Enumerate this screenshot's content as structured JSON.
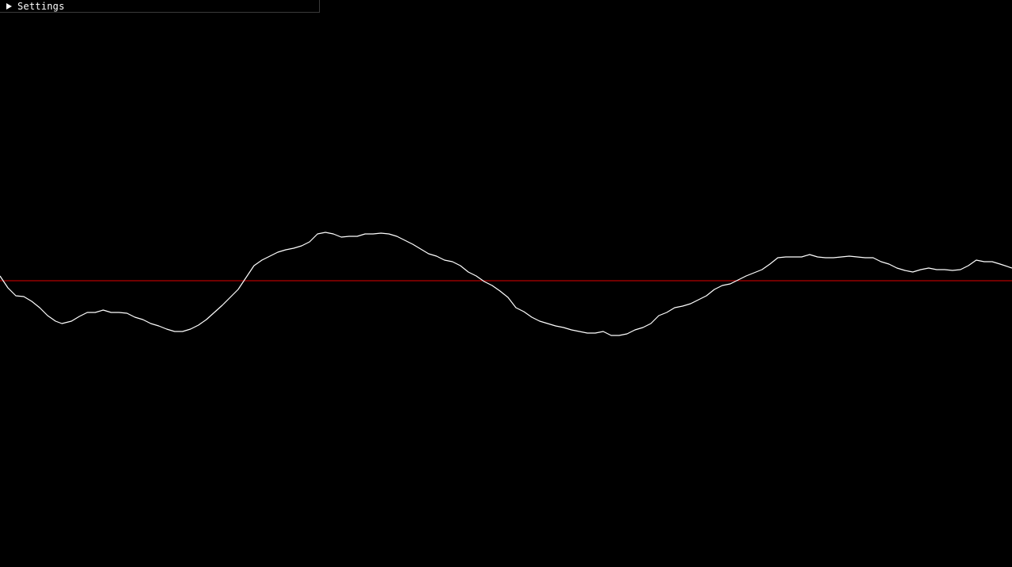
{
  "settings_panel": {
    "label": "Settings",
    "collapsed": true,
    "toggle_icon": "triangle-right-icon"
  },
  "colors": {
    "background": "#000000",
    "signal": "#ffffff",
    "baseline": "#e00000",
    "panel_border": "#3a3a3a"
  },
  "chart_data": {
    "type": "line",
    "xlim": [
      0,
      1275
    ],
    "ylim": [
      -1,
      1
    ],
    "grid": false,
    "baseline": 0,
    "series": [
      {
        "x": [
          0,
          10,
          20,
          30,
          40,
          50,
          60,
          70,
          78,
          90,
          100,
          110,
          120,
          130,
          140,
          150,
          160,
          170,
          180,
          190,
          200,
          210,
          220,
          230,
          240,
          250,
          260,
          270,
          280,
          290,
          300,
          310,
          320,
          330,
          340,
          350,
          360,
          370,
          380,
          390,
          400,
          410,
          420,
          430,
          440,
          450,
          460,
          470,
          480,
          490,
          500,
          510,
          520,
          530,
          540,
          550,
          560,
          570,
          580,
          590,
          600,
          610,
          620,
          630,
          640,
          650,
          660,
          670,
          680,
          690,
          700,
          710,
          720,
          730,
          740,
          750,
          760,
          770,
          780,
          790,
          800,
          810,
          820,
          830,
          840,
          850,
          860,
          870,
          880,
          890,
          900,
          910,
          920,
          930,
          940,
          950,
          960,
          970,
          980,
          990,
          1000,
          1010,
          1020,
          1030,
          1040,
          1050,
          1060,
          1070,
          1080,
          1090,
          1100,
          1110,
          1120,
          1130,
          1140,
          1150,
          1160,
          1170,
          1180,
          1190,
          1200,
          1210,
          1220,
          1230,
          1240,
          1250,
          1260,
          1275
        ],
        "y": [
          0.06,
          -0.09,
          -0.19,
          -0.2,
          -0.26,
          -0.34,
          -0.44,
          -0.51,
          -0.54,
          -0.51,
          -0.45,
          -0.4,
          -0.4,
          -0.37,
          -0.4,
          -0.4,
          -0.41,
          -0.46,
          -0.49,
          -0.54,
          -0.57,
          -0.61,
          -0.64,
          -0.64,
          -0.61,
          -0.56,
          -0.49,
          -0.4,
          -0.31,
          -0.21,
          -0.11,
          0.04,
          0.19,
          0.26,
          0.31,
          0.36,
          0.39,
          0.41,
          0.44,
          0.49,
          0.59,
          0.61,
          0.59,
          0.55,
          0.56,
          0.56,
          0.59,
          0.59,
          0.6,
          0.59,
          0.56,
          0.51,
          0.46,
          0.4,
          0.34,
          0.31,
          0.26,
          0.24,
          0.19,
          0.11,
          0.06,
          -0.01,
          -0.06,
          -0.13,
          -0.21,
          -0.34,
          -0.39,
          -0.46,
          -0.51,
          -0.54,
          -0.57,
          -0.59,
          -0.62,
          -0.64,
          -0.66,
          -0.66,
          -0.64,
          -0.69,
          -0.69,
          -0.67,
          -0.62,
          -0.59,
          -0.54,
          -0.44,
          -0.4,
          -0.34,
          -0.32,
          -0.29,
          -0.24,
          -0.19,
          -0.11,
          -0.06,
          -0.04,
          0.01,
          0.06,
          0.1,
          0.14,
          0.21,
          0.29,
          0.3,
          0.3,
          0.3,
          0.33,
          0.3,
          0.29,
          0.29,
          0.3,
          0.31,
          0.3,
          0.29,
          0.29,
          0.24,
          0.21,
          0.16,
          0.13,
          0.11,
          0.14,
          0.16,
          0.14,
          0.14,
          0.13,
          0.14,
          0.19,
          0.26,
          0.24,
          0.24,
          0.21,
          0.16
        ]
      }
    ]
  }
}
